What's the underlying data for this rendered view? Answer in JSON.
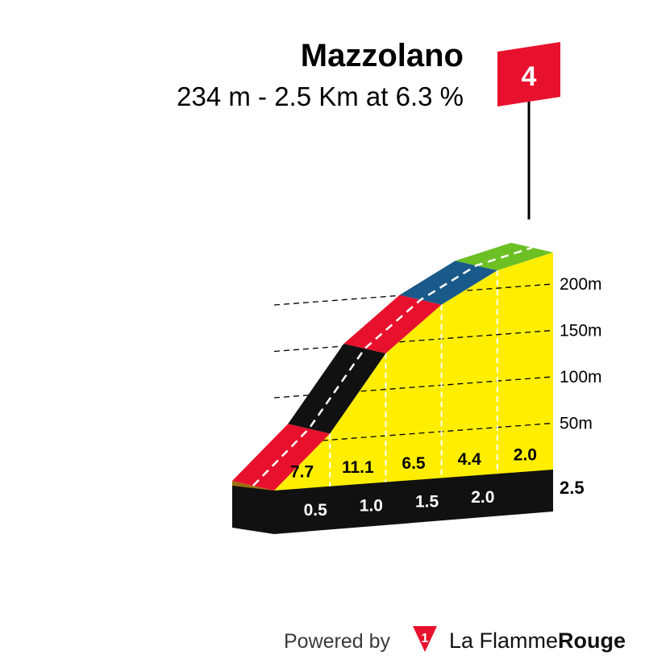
{
  "climb": {
    "name": "Mazzolano",
    "subtitle": "234 m - 2.5 Km at 6.3 %",
    "category": "4",
    "category_color": "#e8112d"
  },
  "footer": {
    "powered_by": "Powered by",
    "brand_logo_glyph": "1",
    "brand_name_a": "La Flamme",
    "brand_name_b": "Rouge"
  },
  "chart_data": {
    "type": "area",
    "title": "Mazzolano",
    "subtitle": "234 m - 2.5 Km at 6.3 %",
    "ylim": [
      0,
      234
    ],
    "y_ticks": [
      {
        "value": 50,
        "label": "50m"
      },
      {
        "value": 100,
        "label": "100m"
      },
      {
        "value": 150,
        "label": "150m"
      },
      {
        "value": 200,
        "label": "200m"
      }
    ],
    "total_distance_km": 2.5,
    "total_distance_label": "2.5",
    "segments": [
      {
        "from_km": 0.0,
        "to_km": 0.5,
        "gradient": 7.7,
        "label": "7.7",
        "color": "#e8112d"
      },
      {
        "from_km": 0.5,
        "to_km": 1.0,
        "gradient": 11.1,
        "label": "11.1",
        "color": "#111111"
      },
      {
        "from_km": 1.0,
        "to_km": 1.5,
        "gradient": 6.5,
        "label": "6.5",
        "color": "#e8112d"
      },
      {
        "from_km": 1.5,
        "to_km": 2.0,
        "gradient": 4.4,
        "label": "4.4",
        "color": "#1a5a8a"
      },
      {
        "from_km": 2.0,
        "to_km": 2.5,
        "gradient": 2.0,
        "label": "2.0",
        "color": "#6cc024"
      }
    ],
    "km_markers": [
      {
        "km": 0.5,
        "label": "0.5"
      },
      {
        "km": 1.0,
        "label": "1.0"
      },
      {
        "km": 1.5,
        "label": "1.5"
      },
      {
        "km": 2.0,
        "label": "2.0"
      }
    ],
    "colors": {
      "fill": "#ffee00",
      "base": "#111111",
      "start_face": "#9b6f10"
    },
    "grid": true
  }
}
